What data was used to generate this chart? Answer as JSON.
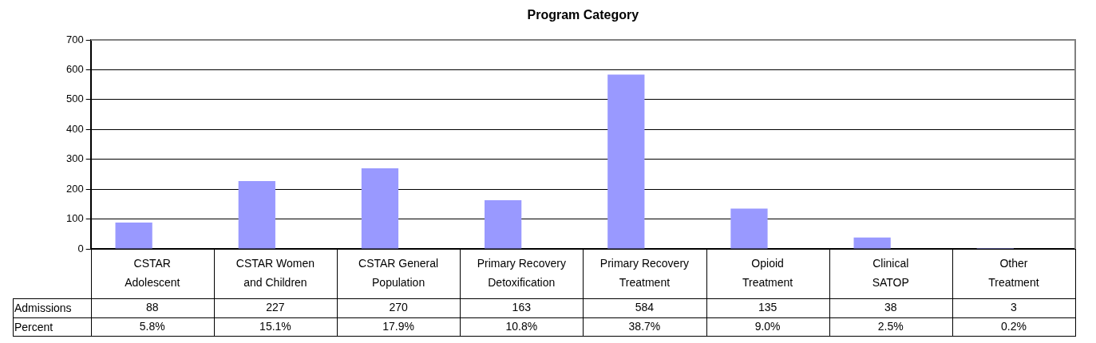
{
  "chart_data": {
    "type": "bar",
    "title": "Program Category",
    "categories": [
      "CSTAR Adolescent",
      "CSTAR Women and Children",
      "CSTAR General Population",
      "Primary Recovery Detoxification",
      "Primary Recovery Treatment",
      "Opioid Treatment",
      "Clinical SATOP",
      "Other Treatment"
    ],
    "series": [
      {
        "name": "Admissions",
        "color": "#9999ff",
        "values": [
          88,
          227,
          270,
          163,
          584,
          135,
          38,
          3
        ]
      }
    ],
    "annotations": [
      "Percent",
      "5.8%",
      "15.1%",
      "17.9%",
      "10.8%",
      "38.7%",
      "9.0%",
      "2.5%",
      "0.2%"
    ],
    "ylim": [
      0,
      700
    ],
    "yticks": [
      0,
      100,
      200,
      300,
      400,
      500,
      600,
      700
    ],
    "grid": "y",
    "legend": "bottom",
    "data_labels": true
  }
}
